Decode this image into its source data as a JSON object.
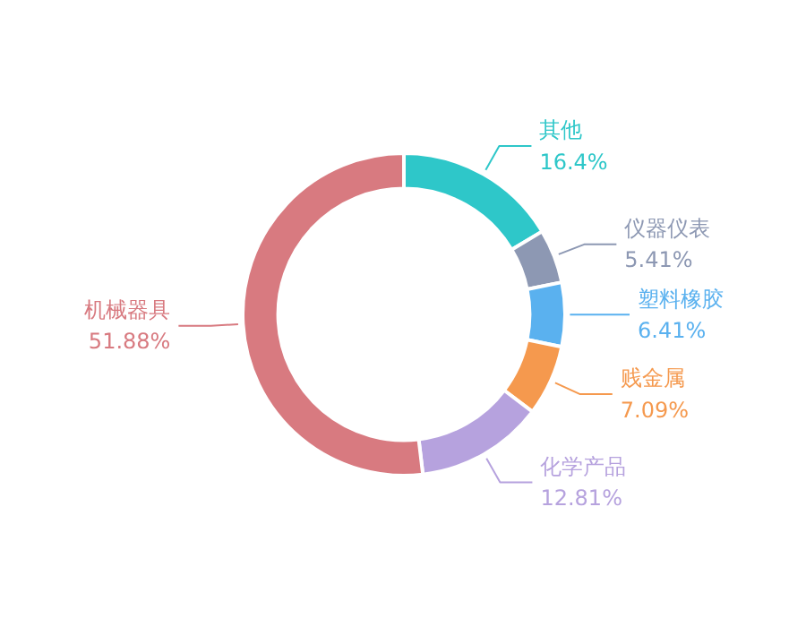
{
  "chart_data": {
    "type": "donut",
    "categories": [
      "其他",
      "仪器仪表",
      "塑料橡胶",
      "贱金属",
      "化学产品",
      "机械器具"
    ],
    "values": [
      16.4,
      5.41,
      6.41,
      7.09,
      12.81,
      51.88
    ],
    "colors": [
      "#2ec7c9",
      "#8d98b3",
      "#5ab1ef",
      "#f5994e",
      "#b6a2de",
      "#d87a80"
    ],
    "value_labels": [
      "16.4%",
      "5.41%",
      "6.41%",
      "7.09%",
      "12.81%",
      "51.88%"
    ]
  }
}
